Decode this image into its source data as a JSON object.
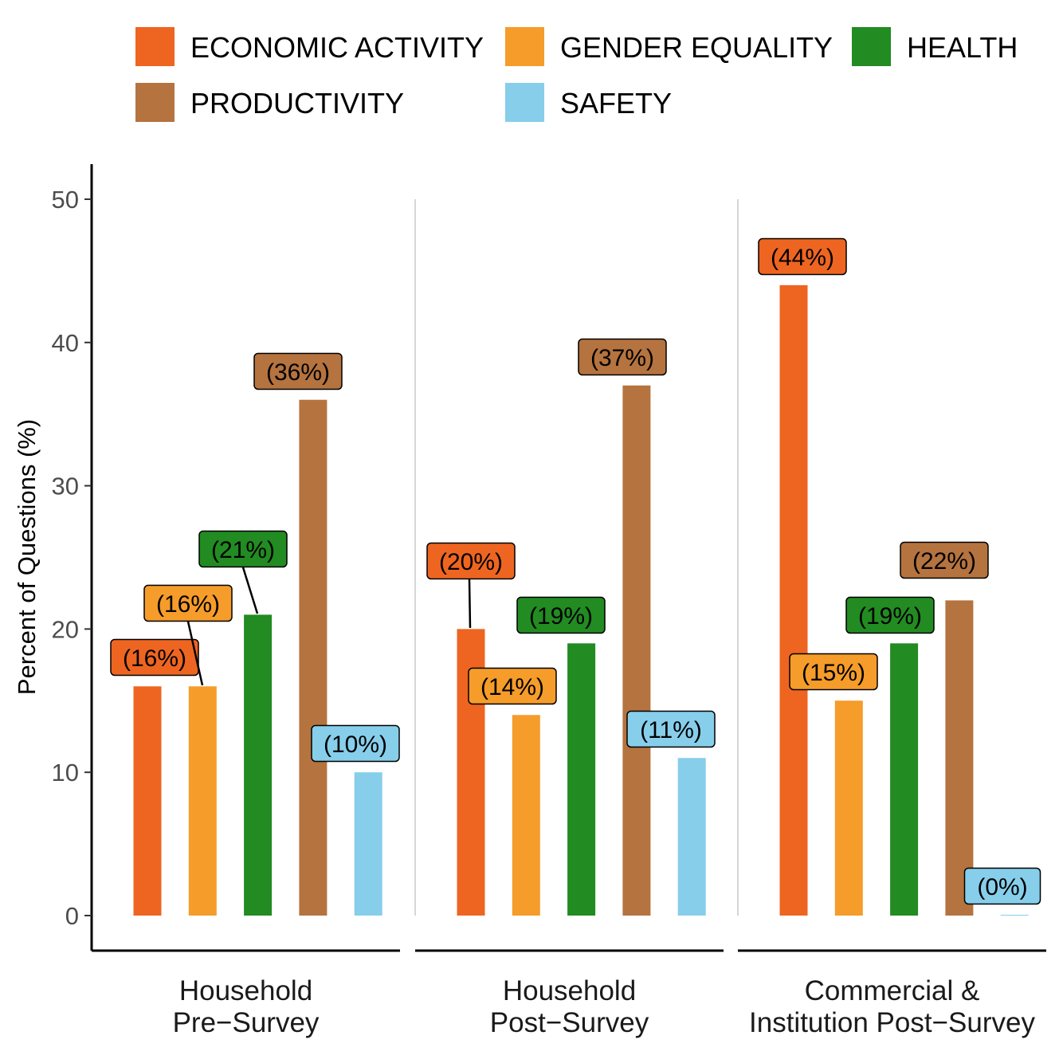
{
  "chart_data": {
    "type": "bar",
    "ylabel": "Percent of Questions (%)",
    "xlabel": "",
    "ylim": [
      0,
      50
    ],
    "y_ticks": [
      0,
      10,
      20,
      30,
      40,
      50
    ],
    "grid": false,
    "legend_position": "top",
    "legend": [
      {
        "name": "ECONOMIC ACTIVITY",
        "color": "#EE6521"
      },
      {
        "name": "GENDER EQUALITY",
        "color": "#F59C2A"
      },
      {
        "name": "HEALTH",
        "color": "#228B22"
      },
      {
        "name": "PRODUCTIVITY",
        "color": "#B5733F"
      },
      {
        "name": "SAFETY",
        "color": "#87CEEB"
      }
    ],
    "facets": [
      {
        "label_lines": [
          "Household",
          "Pre−Survey"
        ],
        "values": [
          16,
          16,
          21,
          36,
          10
        ],
        "labels": [
          "(16%)",
          "(16%)",
          "(21%)",
          "(36%)",
          "(10%)"
        ]
      },
      {
        "label_lines": [
          "Household",
          "Post−Survey"
        ],
        "values": [
          20,
          14,
          19,
          37,
          11
        ],
        "labels": [
          "(20%)",
          "(14%)",
          "(19%)",
          "(37%)",
          "(11%)"
        ]
      },
      {
        "label_lines": [
          "Commercial &",
          "Institution Post−Survey"
        ],
        "values": [
          44,
          15,
          19,
          22,
          0
        ],
        "labels": [
          "(44%)",
          "(15%)",
          "(19%)",
          "(22%)",
          "(0%)"
        ]
      }
    ]
  }
}
